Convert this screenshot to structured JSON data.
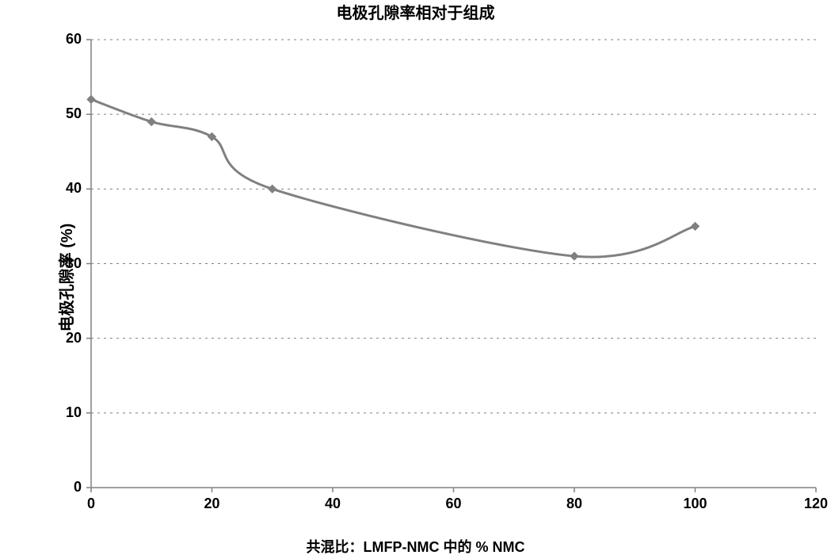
{
  "chart": {
    "type": "line",
    "title": "电极孔隙率相对于组成",
    "title_fontsize": 20,
    "ylabel": "电极孔隙率 (%)",
    "ylabel_fontsize": 20,
    "xlabel": "共混比：LMFP-NMC 中的 % NMC",
    "xlabel_fontsize": 18,
    "background_color": "#ffffff",
    "plot_border_color": "#808080",
    "plot_border_width": 1.5,
    "grid_color": "#808080",
    "grid_dash": "3,5",
    "grid_width": 1,
    "xlim": [
      0,
      120
    ],
    "xtick_step": 20,
    "ylim": [
      0,
      60
    ],
    "ytick_step": 10,
    "tick_fontsize": 18,
    "tick_fontweight": 700,
    "tick_color": "#000000",
    "tick_len": 6,
    "line_color": "#808080",
    "line_width": 3,
    "marker_style": "diamond",
    "marker_size": 10,
    "marker_color": "#808080",
    "smooth": true,
    "x": [
      0,
      10,
      20,
      30,
      80,
      100
    ],
    "y": [
      52,
      49,
      47,
      40,
      31,
      35
    ]
  }
}
